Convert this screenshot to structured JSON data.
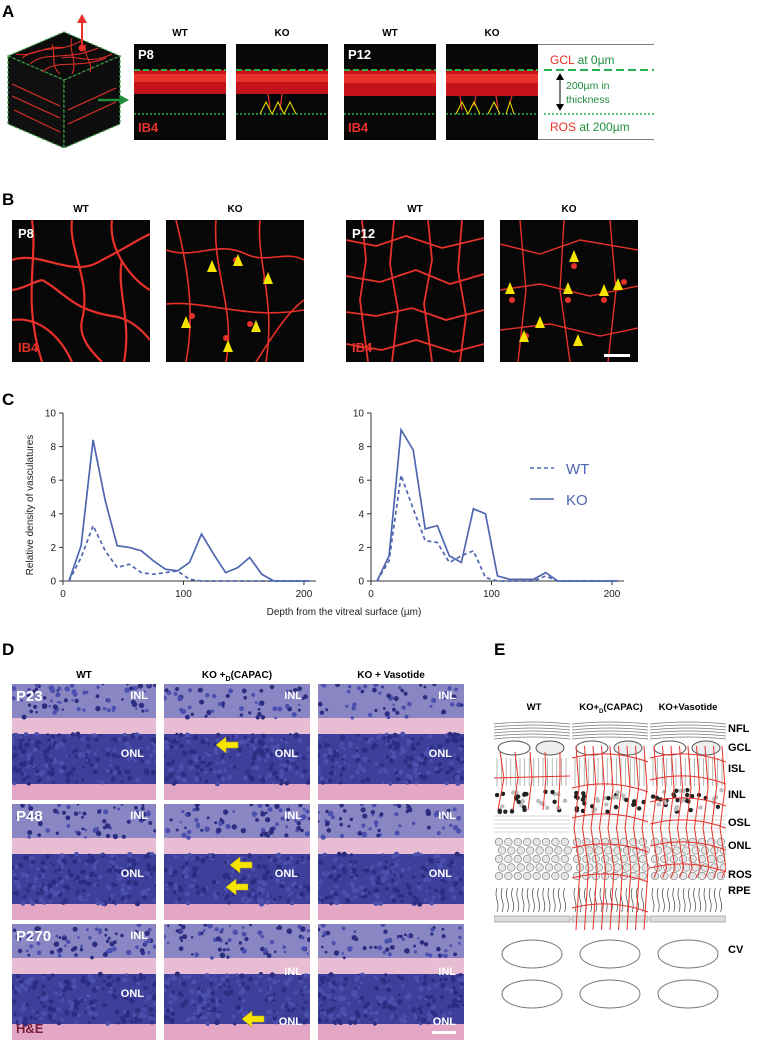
{
  "panelA": {
    "letter": "A",
    "col_heads": [
      "WT",
      "KO",
      "WT",
      "KO"
    ],
    "ages": [
      "P8",
      "P12"
    ],
    "stain": "IB4",
    "stain2": "IB4",
    "gcl_name": "GCL",
    "gcl_value": "at 0µm",
    "thick_1": "200µm in",
    "thick_2": "thickness",
    "ros_name": "ROS",
    "ros_value": "at 200µm"
  },
  "panelB": {
    "letter": "B",
    "col_heads": [
      "WT",
      "KO",
      "WT",
      "KO"
    ],
    "ages": [
      "P8",
      "P12"
    ],
    "stain": "IB4",
    "stain2": "IB4"
  },
  "panelC": {
    "letter": "C",
    "xlabel": "Depth from the vitreal surface (µm)",
    "ylabel": "Relative density of vasculatures",
    "legend": [
      "WT",
      "KO"
    ]
  },
  "chart_data": [
    {
      "type": "line",
      "xlabel": "",
      "ylabel": "Relative density of vasculatures",
      "xlim": [
        0,
        210
      ],
      "ylim": [
        0,
        10
      ],
      "xticks": [
        0,
        100,
        200
      ],
      "yticks": [
        0,
        2,
        4,
        6,
        8,
        10
      ],
      "x": [
        5,
        15,
        25,
        35,
        45,
        55,
        65,
        75,
        85,
        95,
        105,
        115,
        125,
        135,
        145,
        155,
        165,
        175,
        185,
        195,
        205
      ],
      "series": [
        {
          "name": "WT",
          "style": "dashed",
          "values": [
            0,
            1.4,
            3.3,
            1.8,
            0.8,
            1.0,
            0.5,
            0.4,
            0.5,
            0.6,
            0.1,
            0,
            0,
            0,
            0,
            0,
            0,
            0,
            0,
            0,
            0
          ]
        },
        {
          "name": "KO",
          "style": "solid",
          "values": [
            0,
            2.1,
            8.4,
            4.8,
            2.1,
            2.0,
            1.8,
            1.2,
            0.7,
            0.6,
            1.1,
            2.8,
            1.6,
            0.5,
            0.8,
            1.4,
            0.4,
            0,
            0,
            0,
            0
          ]
        }
      ]
    },
    {
      "type": "line",
      "xlabel": "",
      "ylabel": "",
      "xlim": [
        0,
        210
      ],
      "ylim": [
        0,
        10
      ],
      "xticks": [
        0,
        100,
        200
      ],
      "yticks": [
        0,
        2,
        4,
        6,
        8,
        10
      ],
      "x": [
        5,
        15,
        25,
        35,
        45,
        55,
        65,
        75,
        85,
        95,
        105,
        115,
        125,
        135,
        145,
        155,
        165,
        175,
        185,
        195,
        205
      ],
      "series": [
        {
          "name": "WT",
          "style": "dashed",
          "values": [
            0,
            1.2,
            6.3,
            4.3,
            2.4,
            2.3,
            1.1,
            1.5,
            1.8,
            0.2,
            0,
            0,
            0,
            0,
            0.3,
            0,
            0,
            0,
            0,
            0,
            0
          ]
        },
        {
          "name": "KO",
          "style": "solid",
          "values": [
            0,
            1.5,
            9.0,
            7.8,
            3.1,
            3.3,
            1.5,
            1.1,
            4.3,
            4.0,
            0.3,
            0.1,
            0.1,
            0.1,
            0.5,
            0,
            0,
            0,
            0,
            0,
            0
          ]
        }
      ]
    }
  ],
  "panelD": {
    "letter": "D",
    "col_heads": [
      "WT",
      "KO +D(CAPAC)",
      "KO + Vasotide"
    ],
    "ages": [
      "P23",
      "P48",
      "P270"
    ],
    "stain": "H&E",
    "inl": "INL",
    "onl": "ONL"
  },
  "panelE": {
    "letter": "E",
    "col_heads": [
      "WT",
      "KO+D(CAPAC)",
      "KO+Vasotide"
    ],
    "layers": [
      "NFL",
      "GCL",
      "ISL",
      "INL",
      "OSL",
      "ONL",
      "ROS",
      "RPE",
      "CV"
    ]
  },
  "colors": {
    "vessel_red": "#e8312a",
    "gcl_green": "#27b24a",
    "arrow_yellow": "#f5e400",
    "chart_blue": "#4f66b0",
    "he_purple": "#3d3f9a",
    "he_pink": "#e8b8cf"
  }
}
